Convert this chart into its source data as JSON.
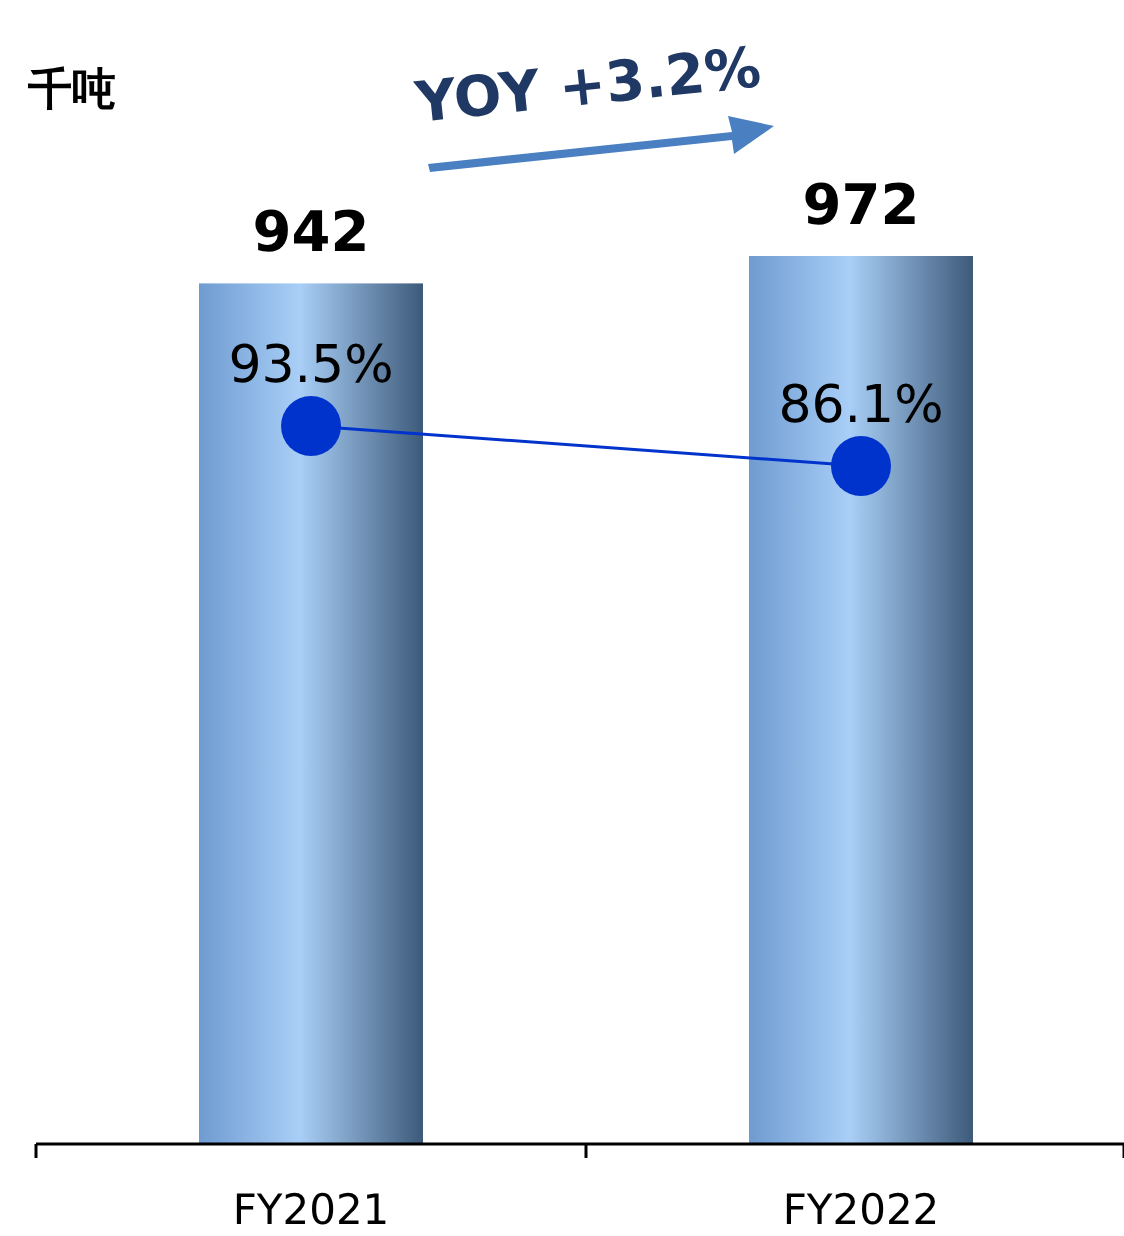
{
  "chart_data": {
    "type": "bar",
    "ylabel": "千吨",
    "categories": [
      "FY2021",
      "FY2022"
    ],
    "series": [
      {
        "color": "#6f9bd1",
        "values": [
          942,
          972
        ]
      },
      {
        "type": "line",
        "axis": "y2",
        "color": "#0033cc",
        "values": [
          93.5,
          86.1
        ],
        "value_labels": [
          "93.5%",
          "86.1%"
        ],
        "marker": "circle"
      }
    ],
    "data_labels": true,
    "annotations": [
      "YOY +3.2%"
    ]
  }
}
